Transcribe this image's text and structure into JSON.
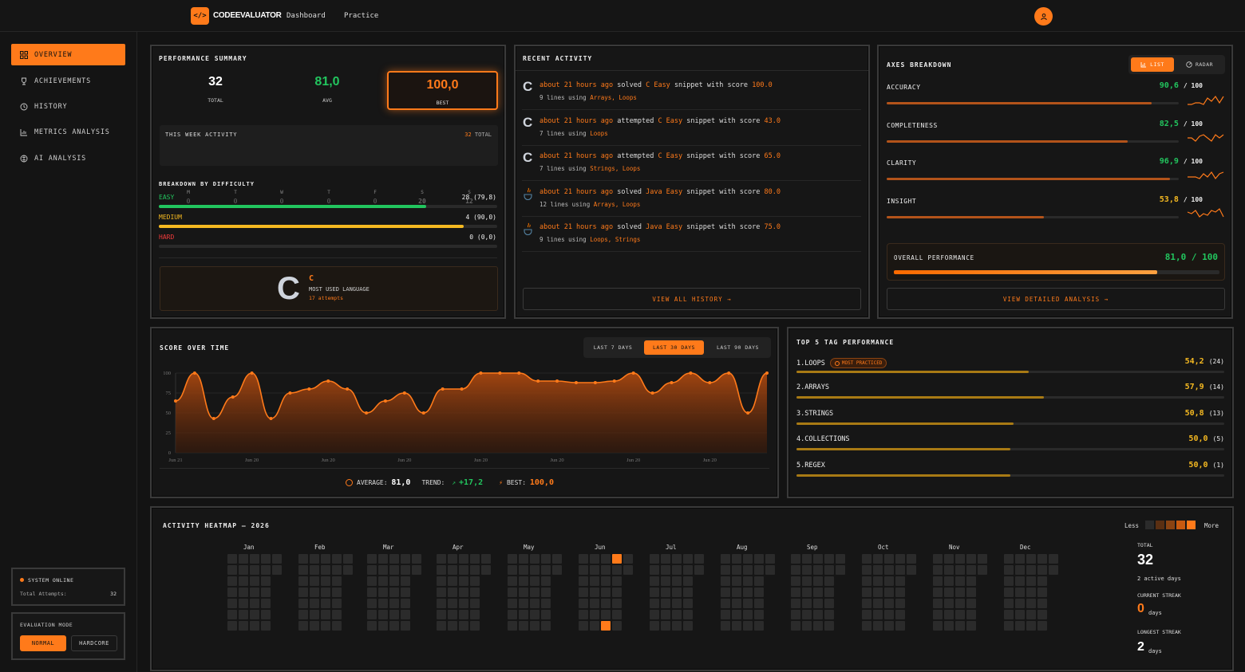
{
  "app": {
    "name": "CODEEVALUATOR",
    "nav": [
      "Dashboard",
      "Practice"
    ]
  },
  "sidebar": {
    "items": [
      {
        "label": "OVERVIEW",
        "icon": "grid-icon",
        "active": true
      },
      {
        "label": "ACHIEVEMENTS",
        "icon": "trophy-icon"
      },
      {
        "label": "HISTORY",
        "icon": "history-icon"
      },
      {
        "label": "METRICS ANALYSIS",
        "icon": "bar-chart-icon"
      },
      {
        "label": "AI ANALYSIS",
        "icon": "brain-icon"
      }
    ],
    "status": {
      "title": "SYSTEM ONLINE",
      "attempts_label": "Total Attempts:",
      "attempts": "32"
    },
    "mode": {
      "title": "EVALUATION MODE",
      "options": [
        "NORMAL",
        "HARDCORE"
      ],
      "selected": "NORMAL"
    }
  },
  "summary": {
    "title": "PERFORMANCE SUMMARY",
    "total": "32",
    "total_label": "TOTAL",
    "avg": "81,0",
    "avg_label": "AVG",
    "best": "100,0",
    "best_label": "BEST",
    "week": {
      "title": "THIS WEEK ACTIVITY",
      "total": "32",
      "total_label": "TOTAL",
      "days": [
        "M",
        "T",
        "W",
        "T",
        "F",
        "S",
        "S"
      ],
      "values": [
        "0",
        "0",
        "0",
        "0",
        "0",
        "20",
        "12"
      ]
    },
    "difficulty": {
      "title": "BREAKDOWN BY DIFFICULTY",
      "rows": [
        {
          "label": "EASY",
          "value": "28 (79,8)",
          "fill": 0.79,
          "color": "#22c55e"
        },
        {
          "label": "MEDIUM",
          "value": "4 (90,0)",
          "fill": 0.9,
          "color": "#f5b921"
        },
        {
          "label": "HARD",
          "value": "0 (0,0)",
          "fill": 0,
          "color": "#ef3b3b"
        }
      ]
    },
    "language": {
      "name": "C",
      "label": "MOST USED LANGUAGE",
      "attempts": "17 attempts"
    }
  },
  "recent": {
    "title": "RECENT ACTIVITY",
    "view_all": "VIEW ALL HISTORY →",
    "items": [
      {
        "lang": "c",
        "time": "about 21 hours ago",
        "verb": "solved",
        "snippet": "C Easy",
        "rest": "snippet with score",
        "score": "100.0",
        "lines": "9 lines",
        "using": "using",
        "tags": "Arrays, Loops"
      },
      {
        "lang": "c",
        "time": "about 21 hours ago",
        "verb": "attempted",
        "snippet": "C Easy",
        "rest": "snippet with score",
        "score": "43.0",
        "lines": "7 lines",
        "using": "using",
        "tags": "Loops"
      },
      {
        "lang": "c",
        "time": "about 21 hours ago",
        "verb": "attempted",
        "snippet": "C Easy",
        "rest": "snippet with score",
        "score": "65.0",
        "lines": "7 lines",
        "using": "using",
        "tags": "Strings, Loops"
      },
      {
        "lang": "java",
        "time": "about 21 hours ago",
        "verb": "solved",
        "snippet": "Java Easy",
        "rest": "snippet with score",
        "score": "80.0",
        "lines": "12 lines",
        "using": "using",
        "tags": "Arrays, Loops"
      },
      {
        "lang": "java",
        "time": "about 21 hours ago",
        "verb": "solved",
        "snippet": "Java Easy",
        "rest": "snippet with score",
        "score": "75.0",
        "lines": "9 lines",
        "using": "using",
        "tags": "Loops, Strings"
      }
    ]
  },
  "axes": {
    "title": "AXES BREAKDOWN",
    "toggle": [
      "LIST",
      "RADAR"
    ],
    "selected": "LIST",
    "rows": [
      {
        "label": "ACCURACY",
        "value": "90,6",
        "max": "/ 100",
        "fill": 0.906,
        "color": "#22c55e"
      },
      {
        "label": "COMPLETENESS",
        "value": "82,5",
        "max": "/ 100",
        "fill": 0.825,
        "color": "#22c55e"
      },
      {
        "label": "CLARITY",
        "value": "96,9",
        "max": "/ 100",
        "fill": 0.969,
        "color": "#22c55e"
      },
      {
        "label": "INSIGHT",
        "value": "53,8",
        "max": "/ 100",
        "fill": 0.538,
        "color": "#f5b921"
      }
    ],
    "overall_label": "OVERALL PERFORMANCE",
    "overall": "81,0 / 100",
    "overall_fill": 0.81,
    "view_detail": "VIEW DETAILED ANALYSIS →"
  },
  "score": {
    "title": "SCORE OVER TIME",
    "ranges": [
      "LAST 7 DAYS",
      "LAST 30 DAYS",
      "LAST 90 DAYS"
    ],
    "selected": "LAST 30 DAYS",
    "avg_label": "AVERAGE:",
    "avg": "81,0",
    "trend_label": "TREND:",
    "trend": "+17,2",
    "best_label": "BEST:",
    "best": "100,0"
  },
  "chart_data": {
    "type": "area",
    "x_ticks": [
      "Jun 21",
      "Jun 20",
      "Jun 20",
      "Jun 20",
      "Jun 20",
      "Jun 20",
      "Jun 20",
      "Jun 20"
    ],
    "y_ticks": [
      "0",
      "25",
      "50",
      "75",
      "100"
    ],
    "ylim": [
      0,
      100
    ],
    "series": [
      {
        "values": [
          65,
          100,
          43,
          70,
          100,
          43,
          75,
          80,
          90,
          80,
          50,
          65,
          75,
          50,
          80,
          80,
          100,
          100,
          100,
          90,
          90,
          88,
          88,
          90,
          100,
          75,
          88,
          100,
          88,
          100,
          50,
          100
        ]
      }
    ]
  },
  "tags": {
    "title": "TOP 5 TAG PERFORMANCE",
    "badge": "MOST PRACTICED",
    "rows": [
      {
        "rank": "1.",
        "name": "LOOPS",
        "score": "54,2",
        "count": "(24)",
        "fill": 0.542
      },
      {
        "rank": "2.",
        "name": "ARRAYS",
        "score": "57,9",
        "count": "(14)",
        "fill": 0.579
      },
      {
        "rank": "3.",
        "name": "STRINGS",
        "score": "50,8",
        "count": "(13)",
        "fill": 0.508
      },
      {
        "rank": "4.",
        "name": "COLLECTIONS",
        "score": "50,0",
        "count": "(5)",
        "fill": 0.5
      },
      {
        "rank": "5.",
        "name": "REGEX",
        "score": "50,0",
        "count": "(1)",
        "fill": 0.5
      }
    ]
  },
  "heatmap": {
    "title": "ACTIVITY HEATMAP — 2026",
    "less": "Less",
    "more": "More",
    "months": [
      "Jan",
      "Feb",
      "Mar",
      "Apr",
      "May",
      "Jun",
      "Jul",
      "Aug",
      "Sep",
      "Oct",
      "Nov",
      "Dec"
    ],
    "total_label": "TOTAL",
    "total": "32",
    "active_days": "2 active days",
    "current_label": "CURRENT STREAK",
    "current": "0",
    "current_unit": "days",
    "longest_label": "LONGEST STREAK",
    "longest": "2",
    "longest_unit": "days"
  },
  "colors": {
    "accent": "#ff7a1a",
    "green": "#22c55e",
    "yellow": "#f5b921",
    "red": "#ef3b3b"
  }
}
